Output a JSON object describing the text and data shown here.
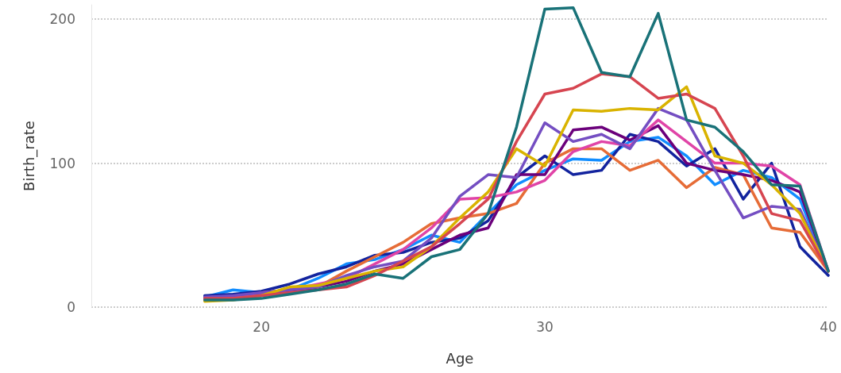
{
  "chart_data": {
    "type": "line",
    "xlabel": "Age",
    "ylabel": "Birth_rate",
    "x": [
      18,
      19,
      20,
      21,
      22,
      23,
      24,
      25,
      26,
      27,
      28,
      29,
      30,
      31,
      32,
      33,
      34,
      35,
      36,
      37,
      38,
      39,
      40
    ],
    "xlim": [
      14,
      40
    ],
    "xticks": [
      20,
      30,
      40
    ],
    "ylim": [
      0,
      210
    ],
    "yticks": [
      0,
      100,
      200
    ],
    "grid": "y",
    "marker": "none",
    "line_style": "solid",
    "series": [
      {
        "color": "#118dff",
        "values": [
          7,
          12,
          10,
          12,
          20,
          30,
          33,
          40,
          50,
          45,
          65,
          85,
          95,
          103,
          102,
          115,
          118,
          105,
          85,
          95,
          90,
          75,
          25
        ]
      },
      {
        "color": "#12239e",
        "values": [
          8,
          9,
          11,
          16,
          23,
          28,
          36,
          38,
          45,
          48,
          60,
          90,
          105,
          92,
          95,
          120,
          115,
          98,
          110,
          75,
          100,
          42,
          22
        ]
      },
      {
        "color": "#e66c37",
        "values": [
          5,
          6,
          9,
          11,
          14,
          25,
          35,
          45,
          58,
          62,
          65,
          72,
          100,
          110,
          110,
          95,
          102,
          83,
          97,
          92,
          55,
          52,
          25
        ]
      },
      {
        "color": "#6b007b",
        "values": [
          6,
          7,
          8,
          10,
          14,
          18,
          25,
          30,
          40,
          50,
          55,
          92,
          92,
          123,
          125,
          116,
          126,
          100,
          95,
          92,
          88,
          80,
          25
        ]
      },
      {
        "color": "#e044a7",
        "values": [
          5,
          7,
          10,
          12,
          16,
          20,
          30,
          40,
          55,
          75,
          76,
          80,
          88,
          108,
          115,
          112,
          130,
          115,
          100,
          100,
          98,
          85,
          25
        ]
      },
      {
        "color": "#744ec2",
        "values": [
          7,
          8,
          10,
          12,
          14,
          22,
          28,
          32,
          48,
          77,
          92,
          90,
          128,
          115,
          120,
          110,
          138,
          130,
          95,
          62,
          70,
          68,
          25
        ]
      },
      {
        "color": "#d9b300",
        "values": [
          4,
          5,
          8,
          14,
          15,
          20,
          25,
          28,
          42,
          62,
          80,
          110,
          98,
          137,
          136,
          138,
          137,
          153,
          105,
          100,
          85,
          65,
          25
        ]
      },
      {
        "color": "#d64550",
        "values": [
          6,
          6,
          8,
          10,
          12,
          14,
          22,
          32,
          42,
          58,
          75,
          115,
          148,
          152,
          162,
          160,
          145,
          148,
          138,
          105,
          65,
          60,
          25
        ]
      },
      {
        "color": "#197278",
        "values": [
          5,
          5,
          6,
          9,
          12,
          16,
          23,
          20,
          35,
          40,
          65,
          125,
          207,
          208,
          163,
          160,
          204,
          130,
          125,
          108,
          85,
          84,
          25
        ]
      }
    ]
  }
}
